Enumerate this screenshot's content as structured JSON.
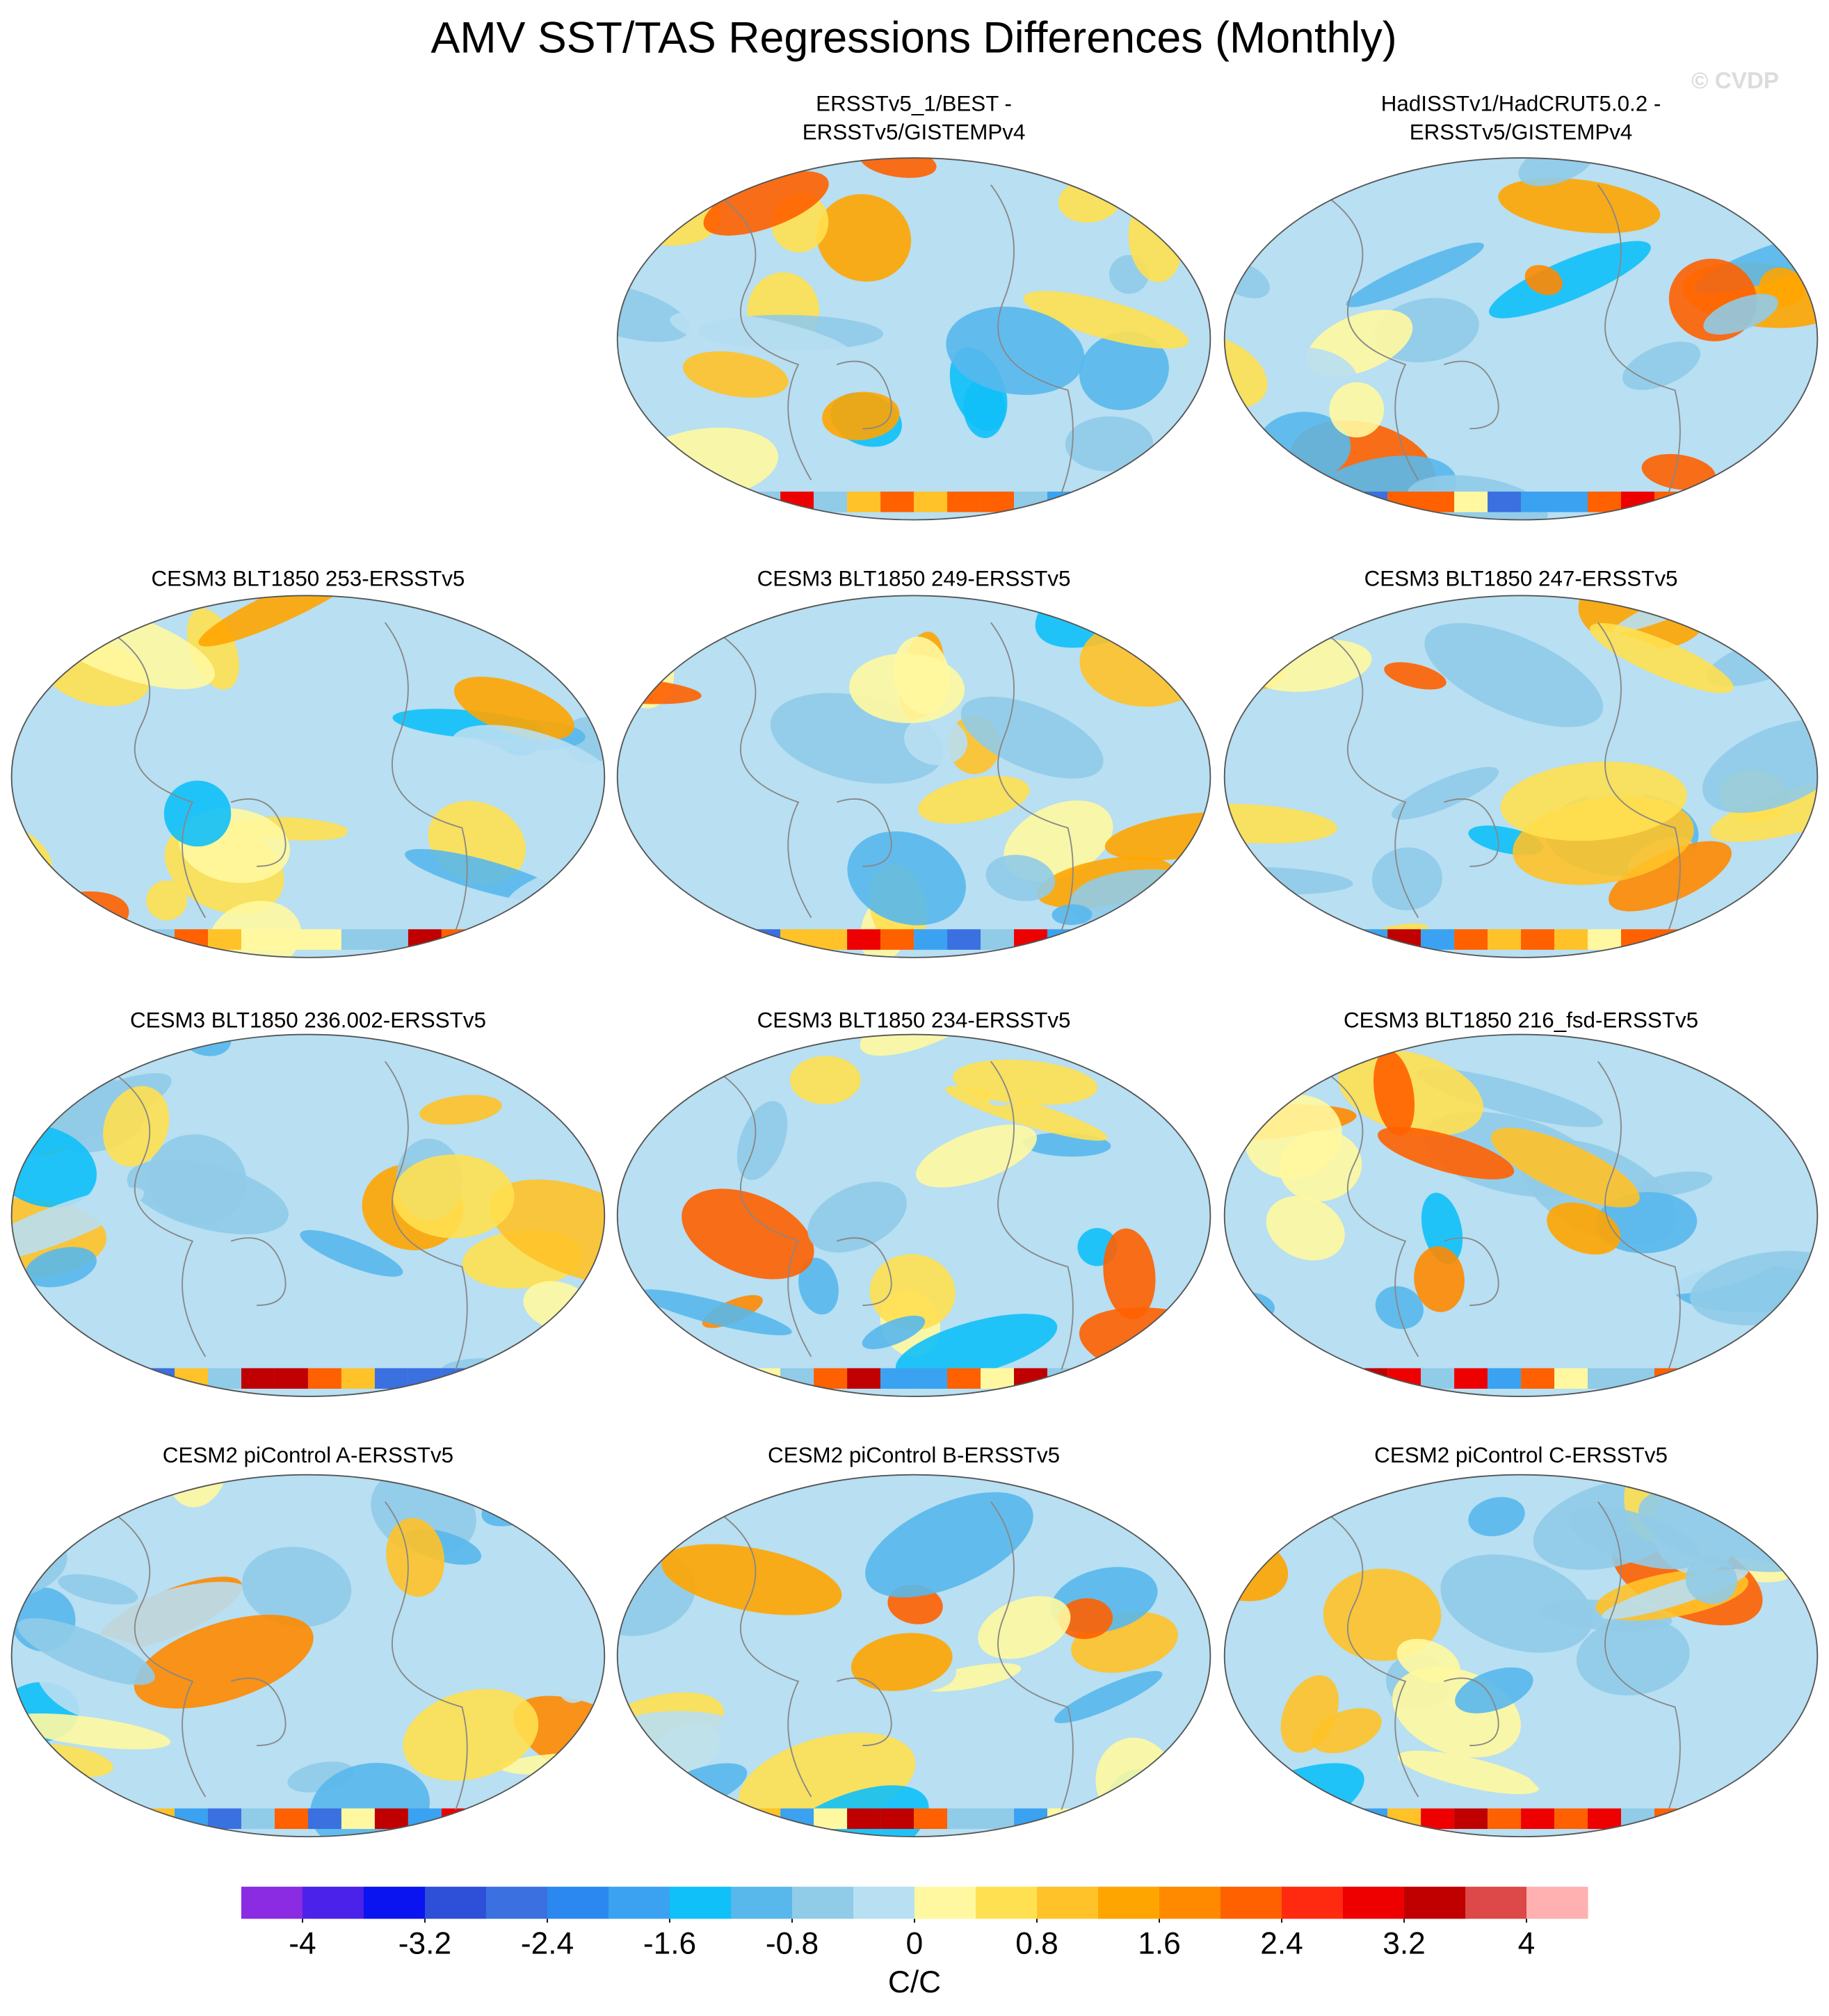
{
  "chart_data": {
    "type": "map",
    "title": "AMV SST/TAS Regressions Differences (Monthly)",
    "watermark": "© CVDP",
    "panels": [
      {
        "title": [
          "ERSSTv5_1/BEST -",
          "ERSSTv5/GISTEMPv4"
        ]
      },
      {
        "title": [
          "HadISSTv1/HadCRUT5.0.2 -",
          "ERSSTv5/GISTEMPv4"
        ]
      },
      {
        "title": [
          "CESM3 BLT1850 253-ERSSTv5"
        ]
      },
      {
        "title": [
          "CESM3 BLT1850 249-ERSSTv5"
        ]
      },
      {
        "title": [
          "CESM3 BLT1850 247-ERSSTv5"
        ]
      },
      {
        "title": [
          "CESM3 BLT1850 236.002-ERSSTv5"
        ]
      },
      {
        "title": [
          "CESM3 BLT1850 234-ERSSTv5"
        ]
      },
      {
        "title": [
          "CESM3 BLT1850 216_fsd-ERSSTv5"
        ]
      },
      {
        "title": [
          "CESM2 piControl A-ERSSTv5"
        ]
      },
      {
        "title": [
          "CESM2 piControl B-ERSSTv5"
        ]
      },
      {
        "title": [
          "CESM2 piControl C-ERSSTv5"
        ]
      }
    ],
    "colorbar": {
      "label": "C/C",
      "levels": [
        -4,
        -3.6,
        -3.2,
        -2.8,
        -2.4,
        -2,
        -1.6,
        -1.2,
        -0.8,
        -0.4,
        0,
        0.4,
        0.8,
        1.2,
        1.6,
        2,
        2.4,
        2.8,
        3.2,
        3.6,
        4
      ],
      "colors": [
        "#8b2be2",
        "#4a22ea",
        "#0a14f0",
        "#2e4fd8",
        "#3a70e0",
        "#2a88f0",
        "#3aa2f0",
        "#10c0f8",
        "#58b8ec",
        "#90cbe8",
        "#b8dff2",
        "#fff8a0",
        "#ffe050",
        "#ffc228",
        "#ffa500",
        "#ff8a00",
        "#ff6000",
        "#ff2a10",
        "#ee0000",
        "#c00000",
        "#dd4848",
        "#ffb0b0"
      ],
      "ticks": [
        -4,
        -3.2,
        -2.4,
        -1.6,
        -0.8,
        0,
        0.8,
        1.6,
        2.4,
        3.2,
        4
      ]
    }
  }
}
